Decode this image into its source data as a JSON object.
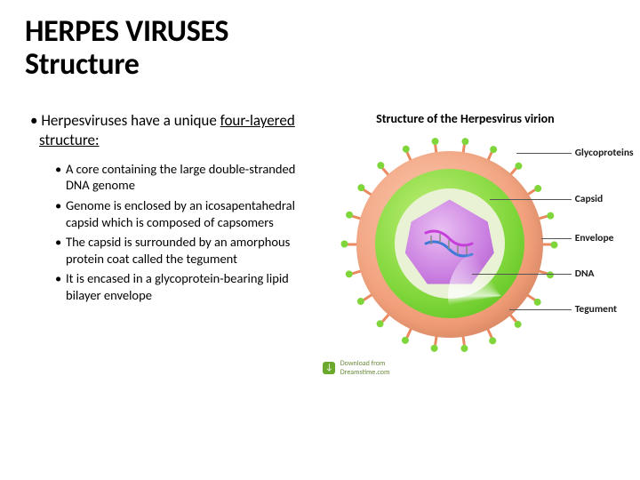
{
  "title": {
    "line1": "HERPES VIRUSES",
    "line2": "Structure"
  },
  "lead": {
    "bullet": "•",
    "prefix": "Herpesviruses have a unique",
    "underlined": "four-layered structure:"
  },
  "sub_points": [
    "A core containing the large double-stranded DNA genome",
    "Genome is enclosed by an icosapentahedral capsid which is composed of capsomers",
    "The capsid is surrounded by an amorphous protein coat called the tegument",
    "It is encased in a glycoprotein-bearing lipid bilayer envelope"
  ],
  "diagram": {
    "title": "Structure of the Herpesvirus virion",
    "labels": {
      "glycoproteins": "Glycoproteins",
      "capsid": "Capsid",
      "envelope": "Envelope",
      "dna": "DNA",
      "tegument": "Tegument"
    },
    "colors": {
      "envelope": "#e98a61",
      "tegument": "#7fd63a",
      "capsid": "#c97de0",
      "dna_a": "#c63eda",
      "dna_b": "#3e7ad6",
      "spike_tip": "#7fd63a",
      "background": "#ffffff",
      "text": "#000000"
    },
    "watermark": {
      "source": "Dreamstime.com",
      "action": "Download from"
    }
  }
}
